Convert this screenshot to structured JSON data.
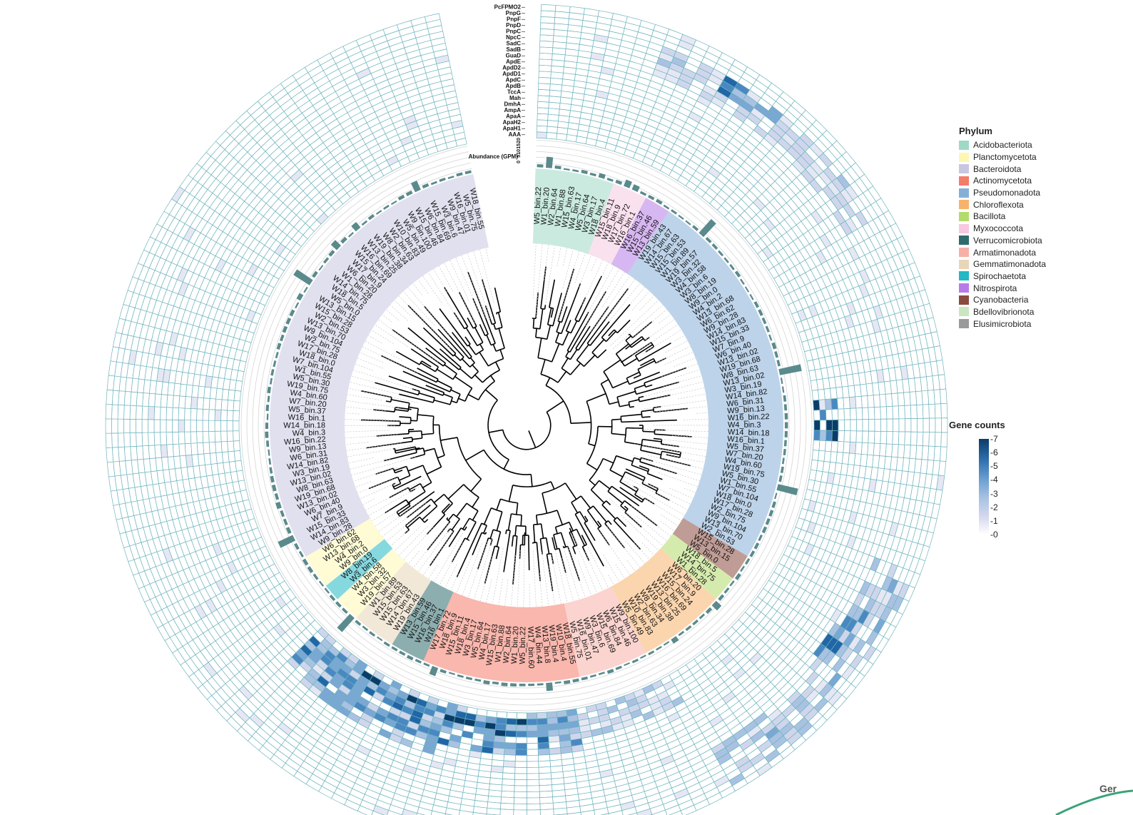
{
  "genes": [
    "PcFPMO2",
    "PnpG",
    "PnpF",
    "PnpD",
    "PnpC",
    "NpcC",
    "SadC",
    "SadB",
    "GuaD",
    "ApdE",
    "ApdD2",
    "ApdD1",
    "ApdC",
    "ApdB",
    "TccA",
    "Mah",
    "DmhA",
    "AmpA",
    "ApaA",
    "ApaH2",
    "ApaH1",
    "AAA"
  ],
  "abundance_label": "Abundance (GPM)",
  "abundance_ticks": [
    "0",
    "5",
    "10",
    "15",
    "20"
  ],
  "phylum_legend": {
    "title": "Phylum",
    "items": [
      {
        "name": "Acidobacteriota",
        "color": "#9fd9c6"
      },
      {
        "name": "Planctomycetota",
        "color": "#fdf7b2"
      },
      {
        "name": "Bacteroidota",
        "color": "#c9c6e2"
      },
      {
        "name": "Actinomycetota",
        "color": "#f47c6a"
      },
      {
        "name": "Pseudomonadota",
        "color": "#86afd8"
      },
      {
        "name": "Chloroflexota",
        "color": "#f7b36b"
      },
      {
        "name": "Bacillota",
        "color": "#b3db6b"
      },
      {
        "name": "Myxococcota",
        "color": "#f6c9e0"
      },
      {
        "name": "Verrucomicrobiota",
        "color": "#2f6b6d"
      },
      {
        "name": "Armatimonadota",
        "color": "#f7b0a8"
      },
      {
        "name": "Gemmatimonadota",
        "color": "#e8d6b8"
      },
      {
        "name": "Spirochaetota",
        "color": "#22b8c4"
      },
      {
        "name": "Nitrospirota",
        "color": "#b77be8"
      },
      {
        "name": "Cyanobacteria",
        "color": "#8b4a3e"
      },
      {
        "name": "Bdellovibrionota",
        "color": "#c9e6c1"
      },
      {
        "name": "Elusimicrobiota",
        "color": "#9a9a9a"
      }
    ]
  },
  "gene_counts": {
    "title": "Gene counts",
    "ticks": [
      "0",
      "1",
      "2",
      "3",
      "4",
      "5",
      "6",
      "7"
    ],
    "low_color": "#ffffff",
    "high_color": "#0b3c68"
  },
  "corner_text": "Ger",
  "tip_labels_visible": [
    "W5_bin.22",
    "W1_bin.20",
    "W2_bin.64",
    "W1_bin.88",
    "W15_bin.63",
    "W4_bin.17",
    "W5_bin.64",
    "W3_bin.17",
    "W18_bin.4",
    "W15_bin.11",
    "W18_bin.9",
    "W17_bin.72",
    "W16_bin.1",
    "W16_bin.37",
    "W15_bin.46",
    "W13_bin.59",
    "W19_bin.43",
    "W14_bin.67",
    "W15_bin.63",
    "W15_bin.53",
    "W1_bin.89",
    "W19_bin.57",
    "W3_bin.32",
    "W4_bin.58",
    "W3_bin.6",
    "W8_bin.19",
    "W9_bin.0",
    "W4_bin.2",
    "W13_bin.68",
    "W6_bin.62",
    "W9_bin.28",
    "W14_bin.83",
    "W15_bin.33",
    "W7_bin.9",
    "W6_bin.40",
    "W13_bin.02",
    "W19_bin.68",
    "W8_bin.63",
    "W13_bin.02",
    "W3_bin.19",
    "W14_bin.82",
    "W6_bin.31",
    "W9_bin.13",
    "W16_bin.22",
    "W4_bin.3",
    "W14_bin.18",
    "W16_bin.1",
    "W5_bin.37",
    "W7_bin.20",
    "W4_bin.60",
    "W19_bin.75",
    "W5_bin.30",
    "W1_bin.55",
    "W7_bin.104",
    "W18_bin.0",
    "W17_bin.28",
    "W2_bin.75",
    "W9_bin.104",
    "W13_bin.70",
    "W2_bin.53",
    "W15_bin.28",
    "W13_bin.15",
    "W5_bin.0",
    "W18_bin.5",
    "W14_bin.75",
    "W1_bin.28",
    "W6_bin.20",
    "W17_bin.9",
    "W15_bin.24",
    "W16_bin.69",
    "W13_bin.25",
    "W19_bin.38",
    "W8_bin.34",
    "W2_bin.63",
    "W10_bin.83",
    "W5_bin.49",
    "W9_bin.100",
    "W15_bin.46",
    "W6_bin.84",
    "W15_bin.69",
    "W3_bin.6",
    "W9_bin.47",
    "W16_bin.01",
    "W5_bin.75",
    "W18_bin.55",
    "W10_bin.4",
    "W19_bin.4",
    "W13_bin.8",
    "W4_bin.44",
    "W17_bin.60"
  ]
}
